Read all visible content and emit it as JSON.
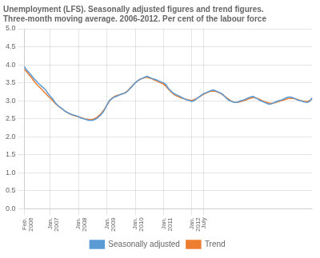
{
  "chart_data": {
    "type": "line",
    "title": "Unemployment (LFS). Seasonally adjusted figures and trend figures.\nThree-month moving average. 2006-2012. Per cent of the labour force",
    "categories": [
      "Feb.\n2006",
      null,
      null,
      null,
      null,
      null,
      null,
      null,
      null,
      null,
      null,
      "Jan.\n2007",
      null,
      null,
      null,
      null,
      null,
      null,
      null,
      null,
      null,
      null,
      null,
      "Jan.\n2008",
      null,
      null,
      null,
      null,
      null,
      null,
      null,
      null,
      null,
      null,
      null,
      "Jan.\n2009",
      null,
      null,
      null,
      null,
      null,
      null,
      null,
      null,
      null,
      null,
      null,
      "Jan.\n2010",
      null,
      null,
      null,
      null,
      null,
      null,
      null,
      null,
      null,
      null,
      null,
      "Jan.\n2011",
      null,
      null,
      null,
      null,
      null,
      null,
      null,
      null,
      null,
      null,
      null,
      "Jan.\n2012",
      null,
      null,
      null,
      null,
      "July",
      null,
      null,
      null,
      null,
      null,
      null,
      null,
      null,
      null,
      null,
      null,
      null,
      null,
      null,
      null,
      null,
      null,
      null,
      null,
      null,
      null,
      null,
      null,
      null,
      null,
      null,
      null,
      null,
      null,
      null,
      null,
      null,
      null,
      null,
      null,
      null,
      null,
      null,
      null,
      null,
      null,
      null,
      null,
      null,
      null,
      null
    ],
    "series": [
      {
        "name": "Seasonally adjusted",
        "color": "#5b9bd5",
        "values": [
          3.95,
          3.85,
          3.78,
          3.7,
          3.62,
          3.55,
          3.48,
          3.42,
          3.36,
          3.3,
          3.2,
          3.12,
          3.05,
          2.95,
          2.88,
          2.82,
          2.78,
          2.72,
          2.68,
          2.65,
          2.62,
          2.6,
          2.58,
          2.56,
          2.52,
          2.5,
          2.48,
          2.46,
          2.45,
          2.46,
          2.48,
          2.52,
          2.58,
          2.65,
          2.75,
          2.88,
          3.0,
          3.05,
          3.1,
          3.12,
          3.15,
          3.18,
          3.2,
          3.22,
          3.28,
          3.35,
          3.42,
          3.5,
          3.55,
          3.6,
          3.62,
          3.65,
          3.68,
          3.65,
          3.62,
          3.6,
          3.58,
          3.55,
          3.52,
          3.5,
          3.45,
          3.35,
          3.28,
          3.22,
          3.18,
          3.15,
          3.12,
          3.08,
          3.05,
          3.02,
          3.0,
          2.98,
          3.0,
          3.05,
          3.1,
          3.15,
          3.2,
          3.22,
          3.25,
          3.28,
          3.3,
          3.28,
          3.25,
          3.22,
          3.18,
          3.12,
          3.05,
          3.0,
          2.98,
          2.95,
          2.95,
          2.98,
          3.0,
          3.02,
          3.05,
          3.08,
          3.1,
          3.12,
          3.08,
          3.05,
          3.0,
          2.98,
          2.95,
          2.92,
          2.9,
          2.92,
          2.95,
          2.98,
          3.0,
          3.02,
          3.05,
          3.08,
          3.1,
          3.1,
          3.08,
          3.05,
          3.02,
          3.0,
          2.98,
          2.96,
          2.95,
          2.98,
          3.08
        ]
      },
      {
        "name": "Trend",
        "color": "#ed7d31",
        "values": [
          3.88,
          3.8,
          3.72,
          3.64,
          3.55,
          3.47,
          3.4,
          3.34,
          3.27,
          3.2,
          3.13,
          3.07,
          3.0,
          2.93,
          2.87,
          2.82,
          2.77,
          2.72,
          2.68,
          2.64,
          2.61,
          2.59,
          2.57,
          2.55,
          2.53,
          2.51,
          2.49,
          2.48,
          2.47,
          2.48,
          2.51,
          2.55,
          2.61,
          2.68,
          2.77,
          2.88,
          2.98,
          3.06,
          3.11,
          3.14,
          3.16,
          3.18,
          3.2,
          3.24,
          3.29,
          3.36,
          3.43,
          3.5,
          3.55,
          3.59,
          3.62,
          3.64,
          3.65,
          3.63,
          3.61,
          3.58,
          3.55,
          3.52,
          3.49,
          3.46,
          3.4,
          3.33,
          3.26,
          3.2,
          3.15,
          3.12,
          3.09,
          3.07,
          3.05,
          3.03,
          3.02,
          3.01,
          3.03,
          3.06,
          3.1,
          3.14,
          3.18,
          3.21,
          3.24,
          3.26,
          3.27,
          3.26,
          3.24,
          3.21,
          3.17,
          3.12,
          3.07,
          3.02,
          2.98,
          2.96,
          2.95,
          2.96,
          2.98,
          3.0,
          3.02,
          3.05,
          3.07,
          3.09,
          3.08,
          3.06,
          3.03,
          3.0,
          2.97,
          2.95,
          2.93,
          2.93,
          2.94,
          2.96,
          2.98,
          3.0,
          3.02,
          3.04,
          3.06,
          3.07,
          3.06,
          3.05,
          3.03,
          3.01,
          2.99,
          2.98,
          2.98,
          3.0,
          3.05
        ]
      }
    ],
    "ylim": [
      0.0,
      5.0
    ],
    "yticks": [
      {
        "value": 0,
        "label": "0.0"
      },
      0.5,
      {
        "value": 1,
        "label": "1.0"
      },
      1.5,
      {
        "value": 2,
        "label": "2.0"
      },
      2.5,
      {
        "value": 3,
        "label": "3.0"
      },
      3.5,
      {
        "value": 4,
        "label": "4.0"
      },
      4.5,
      {
        "value": 5,
        "label": "5.0"
      }
    ],
    "grid": true,
    "legend": "bottom"
  }
}
